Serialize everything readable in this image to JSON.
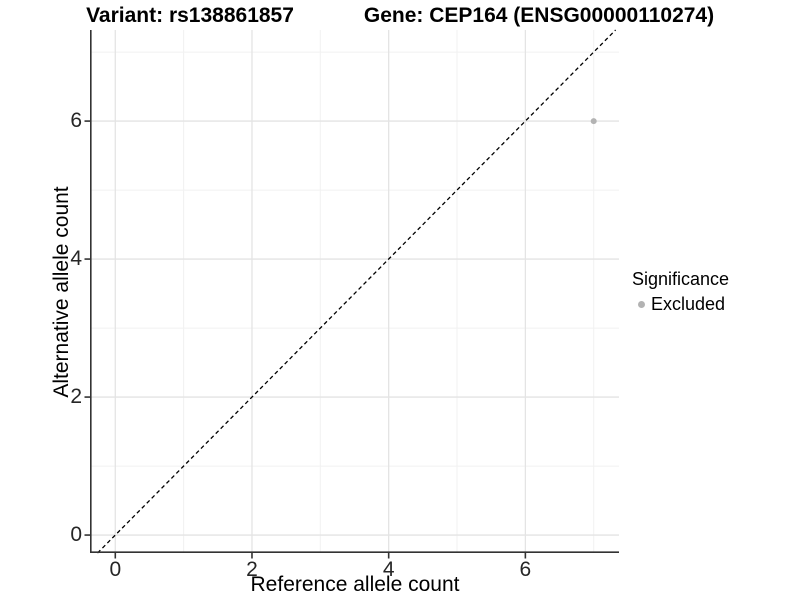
{
  "titles": {
    "variant": "Variant: rs138861857",
    "gene": "Gene: CEP164 (ENSG00000110274)"
  },
  "chart_data": {
    "type": "scatter",
    "xlabel": "Reference allele count",
    "ylabel": "Alternative allele count",
    "x_ticks": [
      0,
      2,
      4,
      6
    ],
    "y_ticks": [
      0,
      2,
      4,
      6
    ],
    "x_minor_ticks": [
      1,
      3,
      5,
      7
    ],
    "y_minor_ticks": [
      1,
      3,
      5,
      7
    ],
    "xlim": [
      -0.37,
      7.37
    ],
    "ylim": [
      -0.26,
      7.32
    ],
    "grid": "on",
    "reference_line": {
      "kind": "identity",
      "equation": "y = x",
      "style": "dashed",
      "color": "#000000"
    },
    "series": [
      {
        "name": "Excluded",
        "color": "#b3b3b3",
        "points": [
          {
            "x": 7,
            "y": 6
          }
        ]
      }
    ],
    "legend": {
      "title": "Significance",
      "position": "right",
      "items": [
        {
          "label": "Excluded",
          "color": "#b3b3b3",
          "marker": "circle"
        }
      ]
    },
    "style": {
      "grid_major_color": "#e4e4e4",
      "grid_minor_color": "#f1f1f1",
      "axis_color": "#333333",
      "background": "#ffffff",
      "point_radius": 3,
      "dash_pattern": "4,3"
    }
  }
}
